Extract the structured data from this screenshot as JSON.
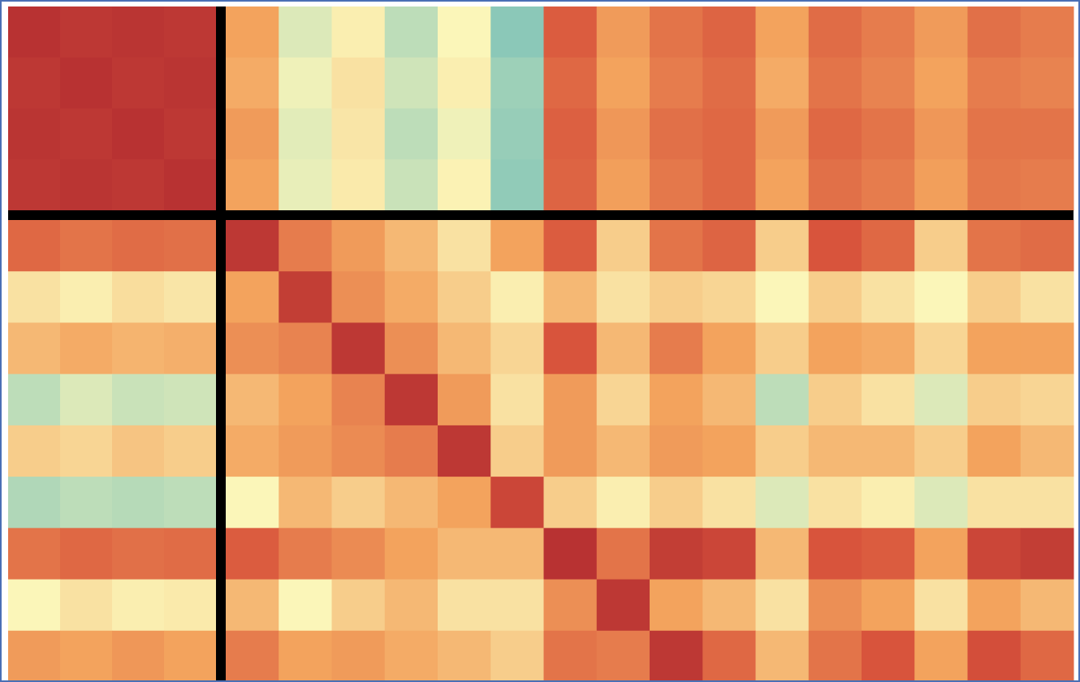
{
  "chart_data": {
    "type": "heatmap",
    "vlim": [
      0,
      1
    ],
    "colormap": [
      "#3a5fb0",
      "#7ec3b8",
      "#fbf6b9",
      "#f3a35d",
      "#d8543c",
      "#a21c2b"
    ],
    "values": [
      [
        0.92,
        0.9,
        0.91,
        0.9,
        0.6,
        0.35,
        0.42,
        0.3,
        0.4,
        0.22,
        0.78,
        0.62,
        0.72,
        0.76,
        0.6,
        0.74,
        0.7,
        0.62,
        0.73,
        0.7
      ],
      [
        0.9,
        0.92,
        0.9,
        0.91,
        0.58,
        0.38,
        0.45,
        0.33,
        0.42,
        0.25,
        0.75,
        0.6,
        0.7,
        0.74,
        0.58,
        0.72,
        0.68,
        0.6,
        0.7,
        0.68
      ],
      [
        0.91,
        0.9,
        0.92,
        0.9,
        0.62,
        0.36,
        0.44,
        0.3,
        0.38,
        0.24,
        0.77,
        0.63,
        0.73,
        0.75,
        0.62,
        0.75,
        0.72,
        0.63,
        0.72,
        0.72
      ],
      [
        0.9,
        0.91,
        0.9,
        0.92,
        0.6,
        0.37,
        0.43,
        0.32,
        0.41,
        0.23,
        0.76,
        0.61,
        0.71,
        0.75,
        0.6,
        0.73,
        0.7,
        0.61,
        0.71,
        0.7
      ],
      [
        0.75,
        0.72,
        0.74,
        0.73,
        0.9,
        0.7,
        0.62,
        0.55,
        0.45,
        0.6,
        0.78,
        0.5,
        0.72,
        0.76,
        0.5,
        0.8,
        0.75,
        0.5,
        0.72,
        0.74
      ],
      [
        0.45,
        0.42,
        0.46,
        0.44,
        0.6,
        0.88,
        0.65,
        0.58,
        0.5,
        0.42,
        0.55,
        0.45,
        0.5,
        0.48,
        0.4,
        0.5,
        0.45,
        0.4,
        0.5,
        0.45
      ],
      [
        0.55,
        0.58,
        0.56,
        0.57,
        0.65,
        0.68,
        0.9,
        0.65,
        0.55,
        0.48,
        0.8,
        0.55,
        0.7,
        0.6,
        0.5,
        0.6,
        0.58,
        0.48,
        0.6,
        0.6
      ],
      [
        0.3,
        0.35,
        0.32,
        0.33,
        0.55,
        0.6,
        0.68,
        0.9,
        0.62,
        0.45,
        0.62,
        0.48,
        0.6,
        0.55,
        0.3,
        0.5,
        0.45,
        0.35,
        0.5,
        0.48
      ],
      [
        0.5,
        0.48,
        0.52,
        0.5,
        0.58,
        0.62,
        0.66,
        0.7,
        0.9,
        0.5,
        0.62,
        0.55,
        0.62,
        0.6,
        0.5,
        0.55,
        0.55,
        0.5,
        0.6,
        0.55
      ],
      [
        0.28,
        0.3,
        0.29,
        0.3,
        0.4,
        0.55,
        0.5,
        0.55,
        0.6,
        0.85,
        0.5,
        0.42,
        0.5,
        0.45,
        0.35,
        0.45,
        0.42,
        0.35,
        0.45,
        0.45
      ],
      [
        0.72,
        0.75,
        0.73,
        0.74,
        0.78,
        0.7,
        0.66,
        0.6,
        0.55,
        0.55,
        0.92,
        0.72,
        0.88,
        0.85,
        0.55,
        0.8,
        0.78,
        0.6,
        0.85,
        0.88
      ],
      [
        0.4,
        0.45,
        0.42,
        0.43,
        0.55,
        0.4,
        0.5,
        0.55,
        0.45,
        0.45,
        0.65,
        0.9,
        0.6,
        0.55,
        0.45,
        0.65,
        0.6,
        0.45,
        0.6,
        0.55
      ],
      [
        0.62,
        0.6,
        0.63,
        0.6,
        0.7,
        0.6,
        0.62,
        0.58,
        0.55,
        0.5,
        0.72,
        0.7,
        0.9,
        0.75,
        0.55,
        0.72,
        0.8,
        0.6,
        0.82,
        0.75
      ]
    ]
  }
}
